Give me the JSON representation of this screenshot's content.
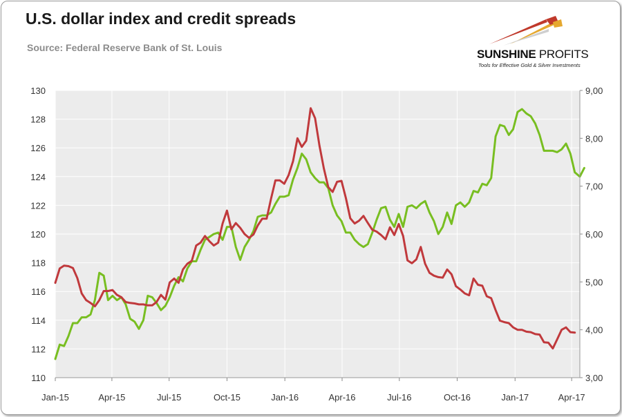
{
  "header": {
    "title": "U.S. dollar index and credit spreads",
    "subtitle": "Source: Federal Reserve Bank of St. Louis"
  },
  "logo": {
    "name_bold": "SUNSHINE",
    "name_light": "PROFITS",
    "tagline": "Tools for Effective Gold & Silver Investments"
  },
  "colors": {
    "plot_background": "#ececec",
    "dollar_index": "#78be21",
    "credit_spreads": "#c0393c",
    "grid": "#ffffff"
  },
  "chart_data": {
    "type": "line",
    "title": "U.S. dollar index and credit spreads",
    "x_tick_labels": [
      "Jan-15",
      "Apr-15",
      "Jul-15",
      "Oct-15",
      "Jan-16",
      "Apr-16",
      "Jul-16",
      "Oct-16",
      "Jan-17",
      "Apr-17"
    ],
    "x_range": [
      "2015-01-01",
      "2017-04-14"
    ],
    "y_left": {
      "ylim": [
        110,
        130
      ],
      "ticks": [
        "110",
        "112",
        "114",
        "116",
        "118",
        "120",
        "122",
        "124",
        "126",
        "128",
        "130"
      ]
    },
    "y_right": {
      "ylim": [
        3.0,
        9.0
      ],
      "ticks": [
        "3,00",
        "4,00",
        "5,00",
        "6,00",
        "7,00",
        "8,00",
        "9,00"
      ]
    },
    "grid": true,
    "legend": "none",
    "series": [
      {
        "axis": "left",
        "color": "#78be21",
        "points": [
          [
            "2015-01-01",
            111.3
          ],
          [
            "2015-01-08",
            112.3
          ],
          [
            "2015-01-15",
            112.2
          ],
          [
            "2015-01-22",
            112.9
          ],
          [
            "2015-01-29",
            113.8
          ],
          [
            "2015-02-05",
            113.8
          ],
          [
            "2015-02-12",
            114.2
          ],
          [
            "2015-02-19",
            114.2
          ],
          [
            "2015-02-26",
            114.4
          ],
          [
            "2015-03-05",
            115.4
          ],
          [
            "2015-03-12",
            117.3
          ],
          [
            "2015-03-19",
            117.1
          ],
          [
            "2015-03-26",
            115.4
          ],
          [
            "2015-04-02",
            115.7
          ],
          [
            "2015-04-09",
            115.4
          ],
          [
            "2015-04-16",
            115.6
          ],
          [
            "2015-04-23",
            115.1
          ],
          [
            "2015-04-30",
            114.1
          ],
          [
            "2015-05-07",
            113.9
          ],
          [
            "2015-05-14",
            113.4
          ],
          [
            "2015-05-21",
            114.0
          ],
          [
            "2015-05-28",
            115.7
          ],
          [
            "2015-06-04",
            115.6
          ],
          [
            "2015-06-11",
            115.2
          ],
          [
            "2015-06-18",
            114.7
          ],
          [
            "2015-06-25",
            115.0
          ],
          [
            "2015-07-02",
            115.6
          ],
          [
            "2015-07-09",
            116.4
          ],
          [
            "2015-07-16",
            117.0
          ],
          [
            "2015-07-23",
            116.7
          ],
          [
            "2015-07-30",
            117.6
          ],
          [
            "2015-08-06",
            118.1
          ],
          [
            "2015-08-13",
            118.1
          ],
          [
            "2015-08-20",
            118.9
          ],
          [
            "2015-08-27",
            119.6
          ],
          [
            "2015-09-03",
            119.8
          ],
          [
            "2015-09-10",
            120.0
          ],
          [
            "2015-09-17",
            120.1
          ],
          [
            "2015-09-24",
            119.6
          ],
          [
            "2015-10-01",
            120.5
          ],
          [
            "2015-10-08",
            120.5
          ],
          [
            "2015-10-15",
            119.1
          ],
          [
            "2015-10-22",
            118.2
          ],
          [
            "2015-10-29",
            119.1
          ],
          [
            "2015-11-05",
            119.6
          ],
          [
            "2015-11-12",
            120.2
          ],
          [
            "2015-11-19",
            121.2
          ],
          [
            "2015-11-26",
            121.3
          ],
          [
            "2015-12-03",
            121.3
          ],
          [
            "2015-12-10",
            121.5
          ],
          [
            "2015-12-17",
            122.1
          ],
          [
            "2015-12-24",
            122.6
          ],
          [
            "2015-12-31",
            122.6
          ],
          [
            "2016-01-07",
            122.7
          ],
          [
            "2016-01-14",
            123.8
          ],
          [
            "2016-01-21",
            124.6
          ],
          [
            "2016-01-28",
            125.6
          ],
          [
            "2016-02-04",
            125.2
          ],
          [
            "2016-02-11",
            124.3
          ],
          [
            "2016-02-18",
            123.9
          ],
          [
            "2016-02-25",
            123.6
          ],
          [
            "2016-03-03",
            123.6
          ],
          [
            "2016-03-10",
            123.2
          ],
          [
            "2016-03-17",
            122.0
          ],
          [
            "2016-03-24",
            121.3
          ],
          [
            "2016-03-31",
            120.9
          ],
          [
            "2016-04-07",
            120.1
          ],
          [
            "2016-04-14",
            120.1
          ],
          [
            "2016-04-21",
            119.6
          ],
          [
            "2016-04-28",
            119.3
          ],
          [
            "2016-05-05",
            119.1
          ],
          [
            "2016-05-12",
            119.3
          ],
          [
            "2016-05-19",
            120.1
          ],
          [
            "2016-05-26",
            121.0
          ],
          [
            "2016-06-02",
            121.8
          ],
          [
            "2016-06-09",
            121.9
          ],
          [
            "2016-06-16",
            121.0
          ],
          [
            "2016-06-23",
            120.5
          ],
          [
            "2016-06-30",
            121.4
          ],
          [
            "2016-07-07",
            120.5
          ],
          [
            "2016-07-14",
            121.9
          ],
          [
            "2016-07-21",
            122.0
          ],
          [
            "2016-07-28",
            121.8
          ],
          [
            "2016-08-04",
            122.1
          ],
          [
            "2016-08-11",
            122.3
          ],
          [
            "2016-08-18",
            121.5
          ],
          [
            "2016-08-25",
            120.9
          ],
          [
            "2016-09-01",
            120.0
          ],
          [
            "2016-09-08",
            120.5
          ],
          [
            "2016-09-15",
            121.5
          ],
          [
            "2016-09-22",
            120.7
          ],
          [
            "2016-09-29",
            122.0
          ],
          [
            "2016-10-06",
            122.2
          ],
          [
            "2016-10-13",
            121.9
          ],
          [
            "2016-10-20",
            122.2
          ],
          [
            "2016-10-27",
            123.0
          ],
          [
            "2016-11-03",
            122.9
          ],
          [
            "2016-11-10",
            123.5
          ],
          [
            "2016-11-17",
            123.4
          ],
          [
            "2016-11-24",
            123.9
          ],
          [
            "2016-12-01",
            126.8
          ],
          [
            "2016-12-08",
            127.6
          ],
          [
            "2016-12-15",
            127.5
          ],
          [
            "2016-12-22",
            126.9
          ],
          [
            "2016-12-29",
            127.3
          ],
          [
            "2017-01-05",
            128.5
          ],
          [
            "2017-01-12",
            128.7
          ],
          [
            "2017-01-19",
            128.4
          ],
          [
            "2017-01-26",
            128.2
          ],
          [
            "2017-02-02",
            127.7
          ],
          [
            "2017-02-09",
            126.9
          ],
          [
            "2017-02-16",
            125.8
          ],
          [
            "2017-02-23",
            125.8
          ],
          [
            "2017-03-02",
            125.8
          ],
          [
            "2017-03-09",
            125.7
          ],
          [
            "2017-03-16",
            125.9
          ],
          [
            "2017-03-23",
            126.3
          ],
          [
            "2017-03-30",
            125.6
          ],
          [
            "2017-04-06",
            124.3
          ],
          [
            "2017-04-14",
            124.0
          ],
          [
            "2017-04-21",
            124.6
          ]
        ]
      },
      {
        "axis": "right",
        "color": "#c0393c",
        "points": [
          [
            "2015-01-01",
            4.98
          ],
          [
            "2015-01-08",
            5.28
          ],
          [
            "2015-01-15",
            5.34
          ],
          [
            "2015-01-22",
            5.33
          ],
          [
            "2015-01-29",
            5.29
          ],
          [
            "2015-02-05",
            5.08
          ],
          [
            "2015-02-12",
            4.76
          ],
          [
            "2015-02-19",
            4.62
          ],
          [
            "2015-02-26",
            4.56
          ],
          [
            "2015-03-05",
            4.49
          ],
          [
            "2015-03-12",
            4.62
          ],
          [
            "2015-03-19",
            4.81
          ],
          [
            "2015-03-26",
            4.81
          ],
          [
            "2015-04-02",
            4.83
          ],
          [
            "2015-04-09",
            4.73
          ],
          [
            "2015-04-16",
            4.68
          ],
          [
            "2015-04-23",
            4.58
          ],
          [
            "2015-04-30",
            4.56
          ],
          [
            "2015-05-07",
            4.55
          ],
          [
            "2015-05-14",
            4.53
          ],
          [
            "2015-05-21",
            4.53
          ],
          [
            "2015-05-28",
            4.51
          ],
          [
            "2015-06-04",
            4.51
          ],
          [
            "2015-06-11",
            4.58
          ],
          [
            "2015-06-18",
            4.73
          ],
          [
            "2015-06-25",
            4.63
          ],
          [
            "2015-07-02",
            4.99
          ],
          [
            "2015-07-09",
            5.07
          ],
          [
            "2015-07-16",
            4.98
          ],
          [
            "2015-07-23",
            5.26
          ],
          [
            "2015-07-30",
            5.38
          ],
          [
            "2015-08-06",
            5.44
          ],
          [
            "2015-08-13",
            5.76
          ],
          [
            "2015-08-20",
            5.82
          ],
          [
            "2015-08-27",
            5.96
          ],
          [
            "2015-09-03",
            5.85
          ],
          [
            "2015-09-10",
            5.76
          ],
          [
            "2015-09-17",
            5.82
          ],
          [
            "2015-09-24",
            6.22
          ],
          [
            "2015-10-01",
            6.49
          ],
          [
            "2015-10-08",
            6.1
          ],
          [
            "2015-10-15",
            6.23
          ],
          [
            "2015-10-22",
            6.13
          ],
          [
            "2015-10-29",
            6.0
          ],
          [
            "2015-11-05",
            5.92
          ],
          [
            "2015-11-12",
            5.99
          ],
          [
            "2015-11-19",
            6.18
          ],
          [
            "2015-11-26",
            6.32
          ],
          [
            "2015-12-03",
            6.32
          ],
          [
            "2015-12-10",
            6.74
          ],
          [
            "2015-12-17",
            7.12
          ],
          [
            "2015-12-24",
            7.12
          ],
          [
            "2015-12-31",
            7.05
          ],
          [
            "2016-01-07",
            7.23
          ],
          [
            "2016-01-14",
            7.52
          ],
          [
            "2016-01-21",
            8.0
          ],
          [
            "2016-01-28",
            7.82
          ],
          [
            "2016-02-04",
            7.95
          ],
          [
            "2016-02-11",
            8.63
          ],
          [
            "2016-02-18",
            8.42
          ],
          [
            "2016-02-25",
            7.85
          ],
          [
            "2016-03-03",
            7.37
          ],
          [
            "2016-03-10",
            6.98
          ],
          [
            "2016-03-17",
            6.88
          ],
          [
            "2016-03-24",
            7.09
          ],
          [
            "2016-03-31",
            7.11
          ],
          [
            "2016-04-07",
            6.75
          ],
          [
            "2016-04-14",
            6.33
          ],
          [
            "2016-04-21",
            6.22
          ],
          [
            "2016-04-28",
            6.28
          ],
          [
            "2016-05-05",
            6.38
          ],
          [
            "2016-05-12",
            6.23
          ],
          [
            "2016-05-19",
            6.09
          ],
          [
            "2016-05-26",
            6.05
          ],
          [
            "2016-06-02",
            5.98
          ],
          [
            "2016-06-09",
            5.89
          ],
          [
            "2016-06-16",
            6.14
          ],
          [
            "2016-06-23",
            5.98
          ],
          [
            "2016-06-30",
            6.21
          ],
          [
            "2016-07-07",
            5.96
          ],
          [
            "2016-07-14",
            5.45
          ],
          [
            "2016-07-21",
            5.39
          ],
          [
            "2016-07-28",
            5.47
          ],
          [
            "2016-08-04",
            5.73
          ],
          [
            "2016-08-11",
            5.38
          ],
          [
            "2016-08-18",
            5.19
          ],
          [
            "2016-08-25",
            5.13
          ],
          [
            "2016-09-01",
            5.1
          ],
          [
            "2016-09-08",
            5.09
          ],
          [
            "2016-09-15",
            5.26
          ],
          [
            "2016-09-22",
            5.16
          ],
          [
            "2016-09-29",
            4.91
          ],
          [
            "2016-10-06",
            4.84
          ],
          [
            "2016-10-13",
            4.76
          ],
          [
            "2016-10-20",
            4.72
          ],
          [
            "2016-10-27",
            5.07
          ],
          [
            "2016-11-03",
            4.94
          ],
          [
            "2016-11-10",
            4.92
          ],
          [
            "2016-11-17",
            4.7
          ],
          [
            "2016-11-24",
            4.66
          ],
          [
            "2016-12-01",
            4.41
          ],
          [
            "2016-12-08",
            4.19
          ],
          [
            "2016-12-15",
            4.16
          ],
          [
            "2016-12-22",
            4.14
          ],
          [
            "2016-12-29",
            4.05
          ],
          [
            "2017-01-05",
            4.0
          ],
          [
            "2017-01-12",
            4.0
          ],
          [
            "2017-01-19",
            3.96
          ],
          [
            "2017-01-26",
            3.95
          ],
          [
            "2017-02-02",
            3.91
          ],
          [
            "2017-02-09",
            3.9
          ],
          [
            "2017-02-16",
            3.74
          ],
          [
            "2017-02-23",
            3.73
          ],
          [
            "2017-03-02",
            3.61
          ],
          [
            "2017-03-09",
            3.8
          ],
          [
            "2017-03-16",
            4.0
          ],
          [
            "2017-03-23",
            4.05
          ],
          [
            "2017-03-30",
            3.95
          ],
          [
            "2017-04-06",
            3.94
          ]
        ]
      }
    ]
  }
}
